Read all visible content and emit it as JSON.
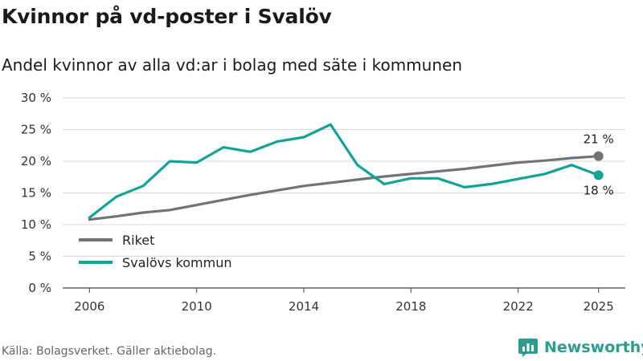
{
  "title": "Kvinnor på vd-poster i Svalöv",
  "subtitle": "Andel kvinnor av alla vd:ar i bolag med säte i kommunen",
  "source": "Källa: Bolagsverket. Gäller aktiebolag.",
  "brand": {
    "name": "Newsworthy",
    "logo_icon": "newsworthy-logo-icon",
    "color": "#2a9d8f"
  },
  "chart_data": {
    "type": "line",
    "title": "Kvinnor på vd-poster i Svalöv",
    "subtitle": "Andel kvinnor av alla vd:ar i bolag med säte i kommunen",
    "xlabel": "",
    "ylabel": "",
    "x": [
      2006,
      2007,
      2008,
      2009,
      2010,
      2011,
      2012,
      2013,
      2014,
      2015,
      2016,
      2017,
      2018,
      2019,
      2020,
      2021,
      2022,
      2023,
      2024,
      2025
    ],
    "x_ticks": [
      "2006",
      "2010",
      "2014",
      "2018",
      "2022",
      "2025"
    ],
    "x_tick_values": [
      2006,
      2010,
      2014,
      2018,
      2022,
      2025
    ],
    "xlim": [
      2005,
      2026
    ],
    "y_ticks": [
      "0 %",
      "5 %",
      "10 %",
      "15 %",
      "20 %",
      "25 %",
      "30 %"
    ],
    "y_tick_values": [
      0,
      5,
      10,
      15,
      20,
      25,
      30
    ],
    "ylim": [
      0,
      30
    ],
    "grid": true,
    "legend_position": "bottom-left",
    "series": [
      {
        "name": "Riket",
        "color": "#737278",
        "values": [
          10.8,
          11.3,
          11.9,
          12.3,
          13.1,
          13.9,
          14.7,
          15.4,
          16.1,
          16.6,
          17.1,
          17.6,
          18.0,
          18.4,
          18.8,
          19.3,
          19.8,
          20.1,
          20.5,
          20.8
        ],
        "end_label": "21 %"
      },
      {
        "name": "Svalövs kommun",
        "color": "#12a398",
        "values": [
          11.1,
          14.4,
          16.1,
          20.0,
          19.8,
          22.2,
          21.5,
          23.1,
          23.8,
          25.8,
          19.4,
          16.4,
          17.3,
          17.3,
          15.9,
          16.4,
          17.2,
          18.0,
          19.4,
          17.8
        ],
        "end_label": "18 %"
      }
    ]
  }
}
